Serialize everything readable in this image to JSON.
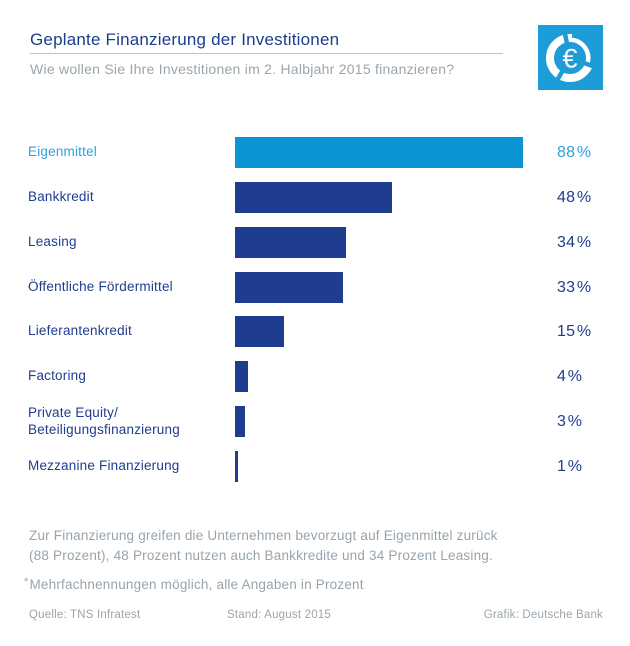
{
  "header": {
    "title": "Geplante Finanzierung der Investitionen",
    "subtitle": "Wie wollen Sie Ihre Investitionen im 2. Halbjahr 2015 finanzieren?"
  },
  "logo": {
    "symbol": "€",
    "background": "#1e9cd8",
    "ring_color": "#ffffff"
  },
  "chart_data": {
    "type": "bar",
    "orientation": "horizontal",
    "unit": "%",
    "categories": [
      "Eigenmittel",
      "Bankkredit",
      "Leasing",
      "Öffentliche Fördermittel",
      "Lieferantenkredit",
      "Factoring",
      "Private Equity/\nBeteiligungsfinanzierung",
      "Mezzanine Finanzierung"
    ],
    "values": [
      88,
      48,
      34,
      33,
      15,
      4,
      3,
      1
    ],
    "value_labels": [
      "88 %",
      "48 %",
      "34 %",
      "33 %",
      "15 %",
      "4 %",
      "3 %",
      "1 %"
    ],
    "xlim": [
      0,
      88
    ],
    "grid": false,
    "legend": false,
    "highlight_index": 0,
    "colors": {
      "bar": "#1e3d8f",
      "text": "#1e3d8f",
      "highlight_bar": "#0b95d5",
      "highlight_text": "#2da2da"
    }
  },
  "summary": "Zur Finanzierung greifen die Unternehmen bevorzugt auf Eigenmittel zurück\n(88 Prozent), 48 Prozent nutzen auch Bankkredite und 34 Prozent Leasing.",
  "footnote": {
    "marker": "*",
    "text": "Mehrfachnennungen möglich, alle Angaben in Prozent"
  },
  "footer": {
    "source": "Quelle: TNS Infratest",
    "date": "Stand: August 2015",
    "credit": "Grafik: Deutsche Bank"
  }
}
